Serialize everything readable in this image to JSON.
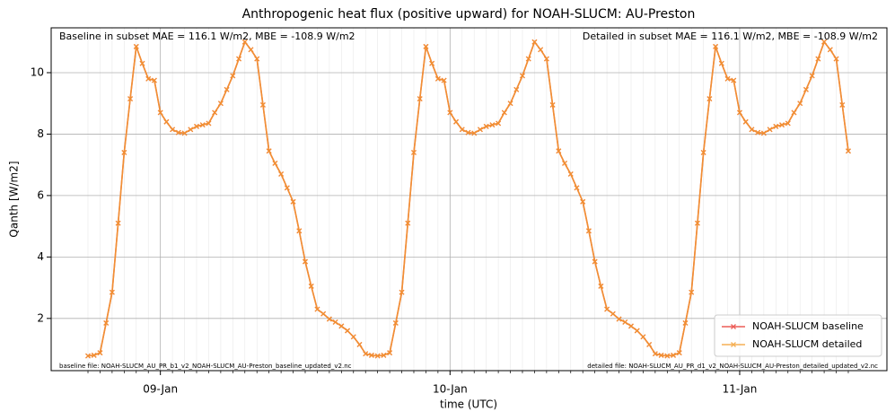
{
  "chart_data": {
    "type": "line",
    "title": "Anthropogenic heat flux (positive upward) for NOAH-SLUCM: AU-Preston",
    "xlabel": "time (UTC)",
    "ylabel": "Qanth [W/m2]",
    "annotations": [
      "Baseline in subset MAE = 116.1 W/m2, MBE = -108.9 W/m2",
      "Detailed in subset MAE = 116.1 W/m2, MBE = -108.9 W/m2",
      "baseline file: NOAH-SLUCM_AU_PR_b1_v2_NOAH-SLUCM_AU-Preston_baseline_updated_v2.nc",
      "detailed file: NOAH-SLUCM_AU_PR_d1_v2_NOAH-SLUCM_AU-Preston_detailed_updated_v2.nc"
    ],
    "categories": [
      null,
      null,
      null,
      null,
      null,
      null,
      null,
      null,
      null,
      null,
      null,
      null,
      "09-Jan",
      null,
      null,
      null,
      null,
      null,
      null,
      null,
      null,
      null,
      null,
      null,
      null,
      null,
      null,
      null,
      null,
      null,
      null,
      null,
      null,
      null,
      null,
      null,
      null,
      null,
      null,
      null,
      null,
      null,
      null,
      null,
      null,
      null,
      null,
      null,
      null,
      null,
      null,
      null,
      null,
      null,
      null,
      null,
      null,
      null,
      null,
      null,
      "10-Jan",
      null,
      null,
      null,
      null,
      null,
      null,
      null,
      null,
      null,
      null,
      null,
      null,
      null,
      null,
      null,
      null,
      null,
      null,
      null,
      null,
      null,
      null,
      null,
      null,
      null,
      null,
      null,
      null,
      null,
      null,
      null,
      null,
      null,
      null,
      null,
      null,
      null,
      null,
      null,
      null,
      null,
      null,
      null,
      null,
      null,
      null,
      null,
      "11-Jan",
      null,
      null,
      null,
      null,
      null,
      null,
      null,
      null,
      null,
      null,
      null,
      null,
      null,
      null,
      null,
      null,
      null,
      null
    ],
    "series": [
      {
        "name": "NOAH-SLUCM baseline",
        "color": "#e8342e",
        "values": [
          0.78,
          0.8,
          0.88,
          1.85,
          2.85,
          5.1,
          7.4,
          9.15,
          10.85,
          10.3,
          9.8,
          9.75,
          8.7,
          8.4,
          8.15,
          8.05,
          8.03,
          8.15,
          8.25,
          8.3,
          8.35,
          8.7,
          9.0,
          9.45,
          9.9,
          10.45,
          11.0,
          10.75,
          10.45,
          8.95,
          7.45,
          7.05,
          6.7,
          6.25,
          5.8,
          4.85,
          3.85,
          3.05,
          2.3,
          2.15,
          1.98,
          1.88,
          1.75,
          1.6,
          1.4,
          1.15,
          0.85,
          0.8,
          0.78,
          0.8,
          0.88,
          1.85,
          2.85,
          5.1,
          7.4,
          9.15,
          10.85,
          10.3,
          9.8,
          9.75,
          8.7,
          8.4,
          8.15,
          8.05,
          8.03,
          8.15,
          8.25,
          8.3,
          8.35,
          8.7,
          9.0,
          9.45,
          9.9,
          10.45,
          11.0,
          10.75,
          10.45,
          8.95,
          7.45,
          7.05,
          6.7,
          6.25,
          5.8,
          4.85,
          3.85,
          3.05,
          2.3,
          2.15,
          1.98,
          1.88,
          1.75,
          1.6,
          1.4,
          1.15,
          0.85,
          0.8,
          0.78,
          0.8,
          0.88,
          1.85,
          2.85,
          5.1,
          7.4,
          9.15,
          10.85,
          10.3,
          9.8,
          9.75,
          8.7,
          8.4,
          8.15,
          8.05,
          8.03,
          8.15,
          8.25,
          8.3,
          8.35,
          8.7,
          9.0,
          9.45,
          9.9,
          10.45,
          11.0,
          10.75,
          10.45,
          8.95,
          7.45
        ]
      },
      {
        "name": "NOAH-SLUCM detailed",
        "color": "#f39c2a",
        "values": [
          0.78,
          0.8,
          0.88,
          1.85,
          2.85,
          5.1,
          7.4,
          9.15,
          10.85,
          10.3,
          9.8,
          9.75,
          8.7,
          8.4,
          8.15,
          8.05,
          8.03,
          8.15,
          8.25,
          8.3,
          8.35,
          8.7,
          9.0,
          9.45,
          9.9,
          10.45,
          11.0,
          10.75,
          10.45,
          8.95,
          7.45,
          7.05,
          6.7,
          6.25,
          5.8,
          4.85,
          3.85,
          3.05,
          2.3,
          2.15,
          1.98,
          1.88,
          1.75,
          1.6,
          1.4,
          1.15,
          0.85,
          0.8,
          0.78,
          0.8,
          0.88,
          1.85,
          2.85,
          5.1,
          7.4,
          9.15,
          10.85,
          10.3,
          9.8,
          9.75,
          8.7,
          8.4,
          8.15,
          8.05,
          8.03,
          8.15,
          8.25,
          8.3,
          8.35,
          8.7,
          9.0,
          9.45,
          9.9,
          10.45,
          11.0,
          10.75,
          10.45,
          8.95,
          7.45,
          7.05,
          6.7,
          6.25,
          5.8,
          4.85,
          3.85,
          3.05,
          2.3,
          2.15,
          1.98,
          1.88,
          1.75,
          1.6,
          1.4,
          1.15,
          0.85,
          0.8,
          0.78,
          0.8,
          0.88,
          1.85,
          2.85,
          5.1,
          7.4,
          9.15,
          10.85,
          10.3,
          9.8,
          9.75,
          8.7,
          8.4,
          8.15,
          8.05,
          8.03,
          8.15,
          8.25,
          8.3,
          8.35,
          8.7,
          9.0,
          9.45,
          9.9,
          10.45,
          11.0,
          10.75,
          10.45,
          8.95,
          7.45
        ]
      }
    ],
    "ylim": [
      0.3,
      11.46
    ],
    "yticks": [
      2,
      4,
      6,
      8,
      10
    ],
    "grid": true,
    "legend": "lower right"
  }
}
